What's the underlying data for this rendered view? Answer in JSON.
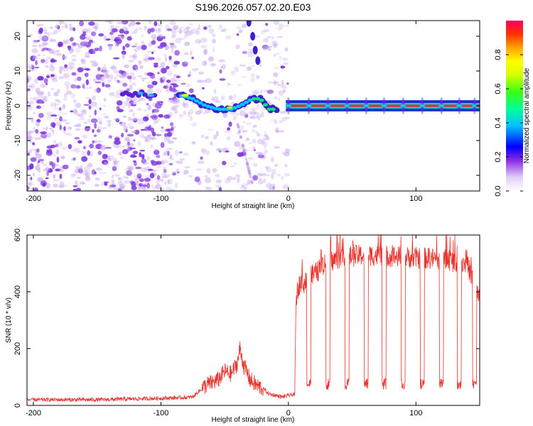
{
  "title": "S196.2026.057.02.20.E03",
  "colors": {
    "snr_line": "#e8322c",
    "ridge_core": "#e4285a",
    "speckle": "#7b2fe0",
    "axis": "#000000",
    "background": "#ffffff"
  },
  "chart_data": [
    {
      "type": "heatmap",
      "name": "spectrogram",
      "xlabel": "Height of straight line (km)",
      "ylabel": "Frequency (Hz)",
      "xlim": [
        -205,
        150
      ],
      "ylim": [
        -24.5,
        24.5
      ],
      "xticks": [
        -200,
        -100,
        0,
        100
      ],
      "yticks": [
        -20,
        -10,
        0,
        10,
        20
      ],
      "xtick_labels": [
        "-200",
        "-100",
        "0",
        "100"
      ],
      "ytick_labels": [
        "-20",
        "-10",
        "0",
        "10",
        "20"
      ],
      "colorbar": {
        "label": "Normalized spectral amplitude",
        "range": [
          0,
          1
        ],
        "ticks": [
          0.0,
          0.2,
          0.4,
          0.6,
          0.8
        ],
        "tick_labels": [
          "0.0",
          "0.2",
          "0.4",
          "0.6",
          "0.8"
        ],
        "colormap": [
          "#ffffff",
          "#e6d6f7",
          "#8a2be2",
          "#0000ff",
          "#00c8ff",
          "#00ff7f",
          "#aaff00",
          "#ffff00",
          "#ffa500",
          "#ff3300",
          "#ff0066"
        ]
      },
      "ridge": {
        "description_points_x_km": [
          -130,
          -115,
          -105,
          -85,
          -75,
          -65,
          -55,
          -45,
          -38,
          -28,
          -22,
          -15,
          -10,
          0,
          150
        ],
        "frequency_hz": [
          3.5,
          3.5,
          3,
          3,
          2,
          0,
          -1,
          -1,
          0,
          2,
          2,
          -1,
          -1,
          0,
          0
        ],
        "flash_x_km": [
          -31,
          -28,
          -26,
          -24
        ],
        "flash_freq_hz": [
          24,
          20,
          16,
          13
        ],
        "pulse_centers_km": [
          0,
          16,
          31,
          46,
          61,
          75,
          90,
          105,
          120,
          134,
          146
        ]
      }
    },
    {
      "type": "line",
      "name": "snr",
      "xlabel": "Height of straight line (km)",
      "ylabel": "SNR (10 * v/v)",
      "xlim": [
        -205,
        150
      ],
      "ylim": [
        0,
        600
      ],
      "xticks": [
        -200,
        -100,
        0,
        100
      ],
      "yticks": [
        0,
        200,
        400,
        600
      ],
      "xtick_labels": [
        "-200",
        "-100",
        "0",
        "100"
      ],
      "ytick_labels": [
        "0",
        "200",
        "400",
        "600"
      ],
      "series": [
        {
          "name": "SNR",
          "x_km": [
            -205,
            -150,
            -100,
            -80,
            -75,
            -70,
            -65,
            -60,
            -55,
            -50,
            -45,
            -40,
            -38,
            -35,
            -30,
            -25,
            -20,
            -15,
            -10,
            -5,
            0,
            5,
            6,
            8,
            10,
            12,
            20,
            30,
            40,
            60,
            80,
            100,
            120,
            140,
            150
          ],
          "y": [
            20,
            20,
            25,
            28,
            30,
            50,
            70,
            80,
            90,
            120,
            110,
            150,
            200,
            140,
            90,
            70,
            60,
            40,
            35,
            30,
            35,
            40,
            380,
            420,
            440,
            430,
            460,
            500,
            520,
            530,
            525,
            520,
            515,
            500,
            380
          ],
          "dip_centers_km": [
            16,
            31,
            46,
            61,
            75,
            90,
            105,
            120,
            134,
            146
          ],
          "dip_level": 75
        }
      ]
    }
  ]
}
